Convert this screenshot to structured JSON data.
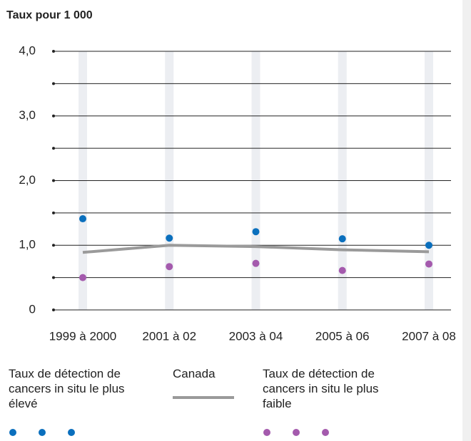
{
  "chart_data": {
    "type": "line",
    "title": "Taux pour 1 000",
    "categories": [
      "1999 à 2000",
      "2001 à 02",
      "2003 à 04",
      "2005 à 06",
      "2007 à 08"
    ],
    "series": [
      {
        "name": "Taux de détection de cancers in situ le plus élevé",
        "color": "#0a6fbd",
        "style": "dots",
        "values": [
          1.41,
          1.11,
          1.21,
          1.1,
          1.0
        ]
      },
      {
        "name": "Canada",
        "color": "#9a9a9a",
        "style": "line",
        "values": [
          0.89,
          1.0,
          0.98,
          0.93,
          0.9
        ]
      },
      {
        "name": "Taux de détection de cancers in situ le plus faible",
        "color": "#a45aad",
        "style": "dots",
        "values": [
          0.5,
          0.67,
          0.72,
          0.61,
          0.71
        ]
      }
    ],
    "ylim": [
      0,
      4
    ],
    "yticks": [
      0,
      {
        "value": 1,
        "label": "1,0"
      },
      {
        "value": 2,
        "label": "2,0"
      },
      {
        "value": 3,
        "label": "3,0"
      },
      {
        "value": 4,
        "label": "4,0"
      }
    ],
    "minor_yticks": [
      0.5,
      1.5,
      2.5,
      3.5
    ],
    "grid": true
  }
}
